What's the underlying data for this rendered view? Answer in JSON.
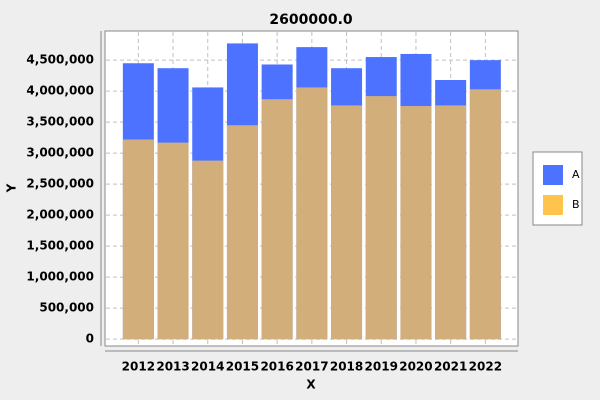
{
  "chart_data": {
    "type": "bar",
    "title": "2600000.0",
    "x_label": "X",
    "y_label": "Y",
    "categories": [
      "2012",
      "2013",
      "2014",
      "2015",
      "2016",
      "2017",
      "2018",
      "2019",
      "2020",
      "2021",
      "2022"
    ],
    "series": [
      {
        "name": "A",
        "color": "#4d72ff",
        "values": [
          4450000,
          4370000,
          4060000,
          4770000,
          4430000,
          4710000,
          4370000,
          4550000,
          4600000,
          4180000,
          4500000
        ]
      },
      {
        "name": "B",
        "color": "#ffc44d",
        "values": [
          3220000,
          3170000,
          2880000,
          3450000,
          3870000,
          4060000,
          3770000,
          3920000,
          3760000,
          3770000,
          4030000
        ]
      }
    ],
    "ylim": [
      -110000,
      4970000
    ],
    "yticks": [
      0,
      {
        "value": 500000,
        "label": "500,000"
      },
      {
        "value": 1000000,
        "label": "1,000,000"
      },
      {
        "value": 1500000,
        "label": "1,500,000"
      },
      {
        "value": 2000000,
        "label": "2,000,000"
      },
      {
        "value": 2500000,
        "label": "2,500,000"
      },
      {
        "value": 3000000,
        "label": "3,000,000"
      },
      {
        "value": 3500000,
        "label": "3,500,000"
      },
      {
        "value": 4000000,
        "label": "4,000,000"
      },
      {
        "value": 4500000,
        "label": "4,500,000"
      }
    ],
    "grid": true,
    "legend": "right"
  }
}
